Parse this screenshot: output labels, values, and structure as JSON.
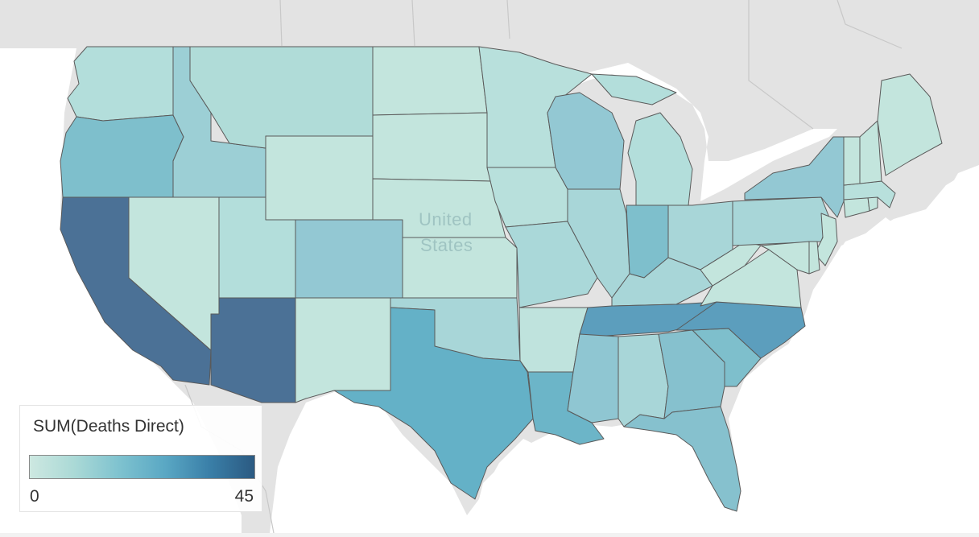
{
  "map": {
    "region": "United States",
    "label": "United States",
    "measure": "SUM(Deaths Direct)",
    "color_scale": {
      "min": 0,
      "max": 45,
      "colors": [
        "#cde8e1",
        "#aad9d6",
        "#7ec2cf",
        "#5aa8c4",
        "#3a7fa8",
        "#2b5a82"
      ]
    },
    "state_colors": {
      "WA": "#b3dedb",
      "OR": "#7ebfcc",
      "CA": "#4b7196",
      "NV": "#c3e5dd",
      "ID": "#9ccfd5",
      "MT": "#b0dcd8",
      "WY": "#c3e5dd",
      "UT": "#b3dedb",
      "AZ": "#4b7196",
      "CO": "#93c8d3",
      "NM": "#c3e5dd",
      "ND": "#c3e5dd",
      "SD": "#c3e5dd",
      "NE": "#c3e5dd",
      "KS": "#c3e5dd",
      "OK": "#a8d6d8",
      "TX": "#64b1c7",
      "MN": "#b8e0dc",
      "IA": "#b8e0dc",
      "MO": "#aad8d9",
      "AR": "#bfe3dd",
      "LA": "#6cb5c8",
      "WI": "#93c8d3",
      "IL": "#a8d6d8",
      "MI": "#b3dedb",
      "IN": "#7ebfcc",
      "OH": "#a8d6d8",
      "KY": "#a8d6d8",
      "TN": "#5c9ebd",
      "MS": "#8fc6d2",
      "AL": "#a8d6d8",
      "GA": "#86c1ce",
      "FL": "#86c1ce",
      "SC": "#7ebfcc",
      "NC": "#5c9ebd",
      "VA": "#c3e5dd",
      "WV": "#c3e5dd",
      "PA": "#a8d6d8",
      "NY": "#93c8d3",
      "NJ": "#c3e5dd",
      "DE": "#c3e5dd",
      "MD": "#c3e5dd",
      "CT": "#c3e5dd",
      "RI": "#c3e5dd",
      "MA": "#b8e0dc",
      "VT": "#c3e5dd",
      "NH": "#c3e5dd",
      "ME": "#c3e5dd"
    }
  },
  "legend": {
    "title": "SUM(Deaths Direct)",
    "min_label": "0",
    "max_label": "45"
  }
}
